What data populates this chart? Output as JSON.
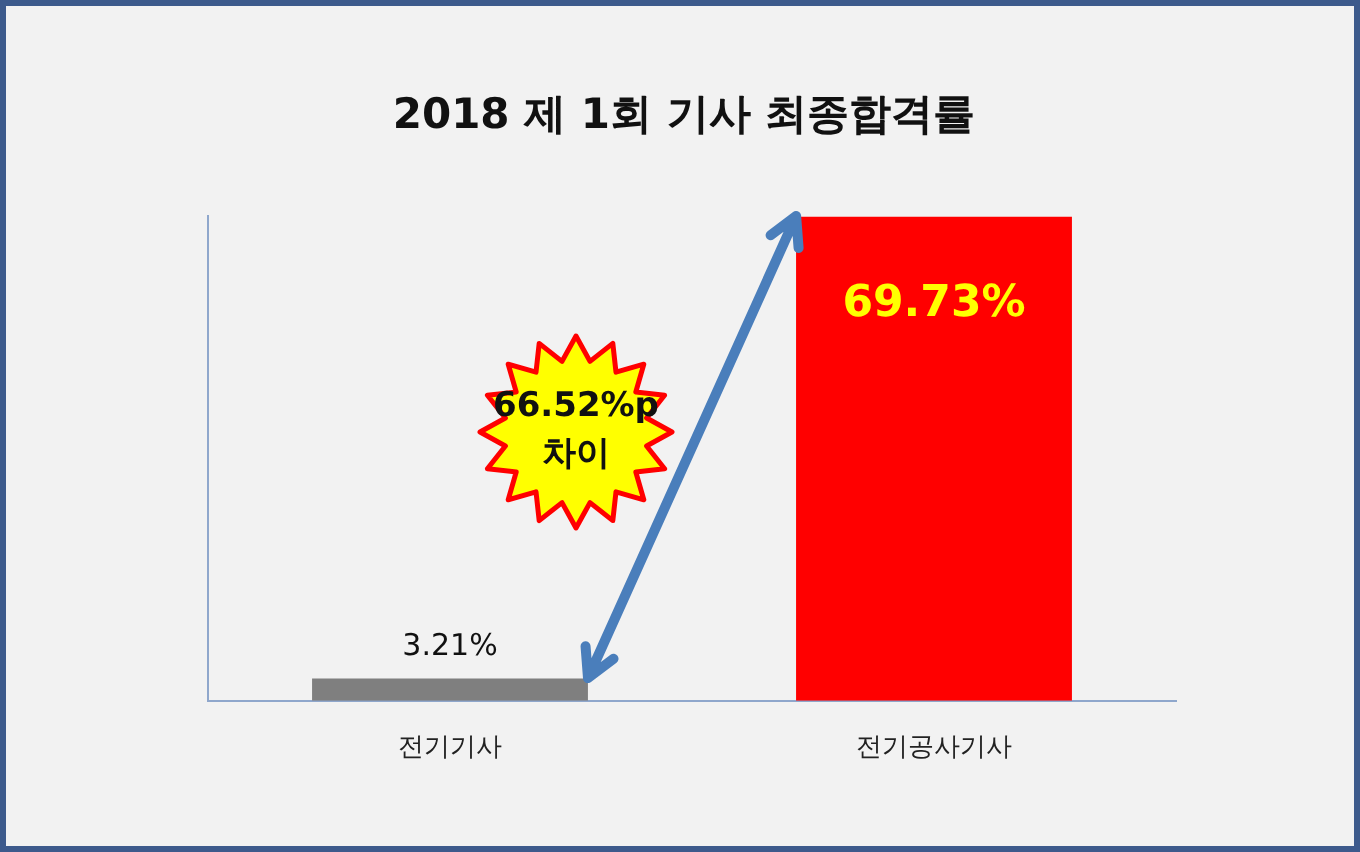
{
  "chart_data": {
    "type": "bar",
    "title": "2018 제 1회 기사 최종합격률",
    "categories": [
      "전기기사",
      "전기공사기사"
    ],
    "values": [
      3.21,
      69.73
    ],
    "colors": [
      "#7f7f7f",
      "#ff0000"
    ],
    "value_labels": [
      "3.21%",
      "69.73%"
    ],
    "annotations": [
      "66.52%p 차이"
    ],
    "grid": false,
    "legend": false
  }
}
